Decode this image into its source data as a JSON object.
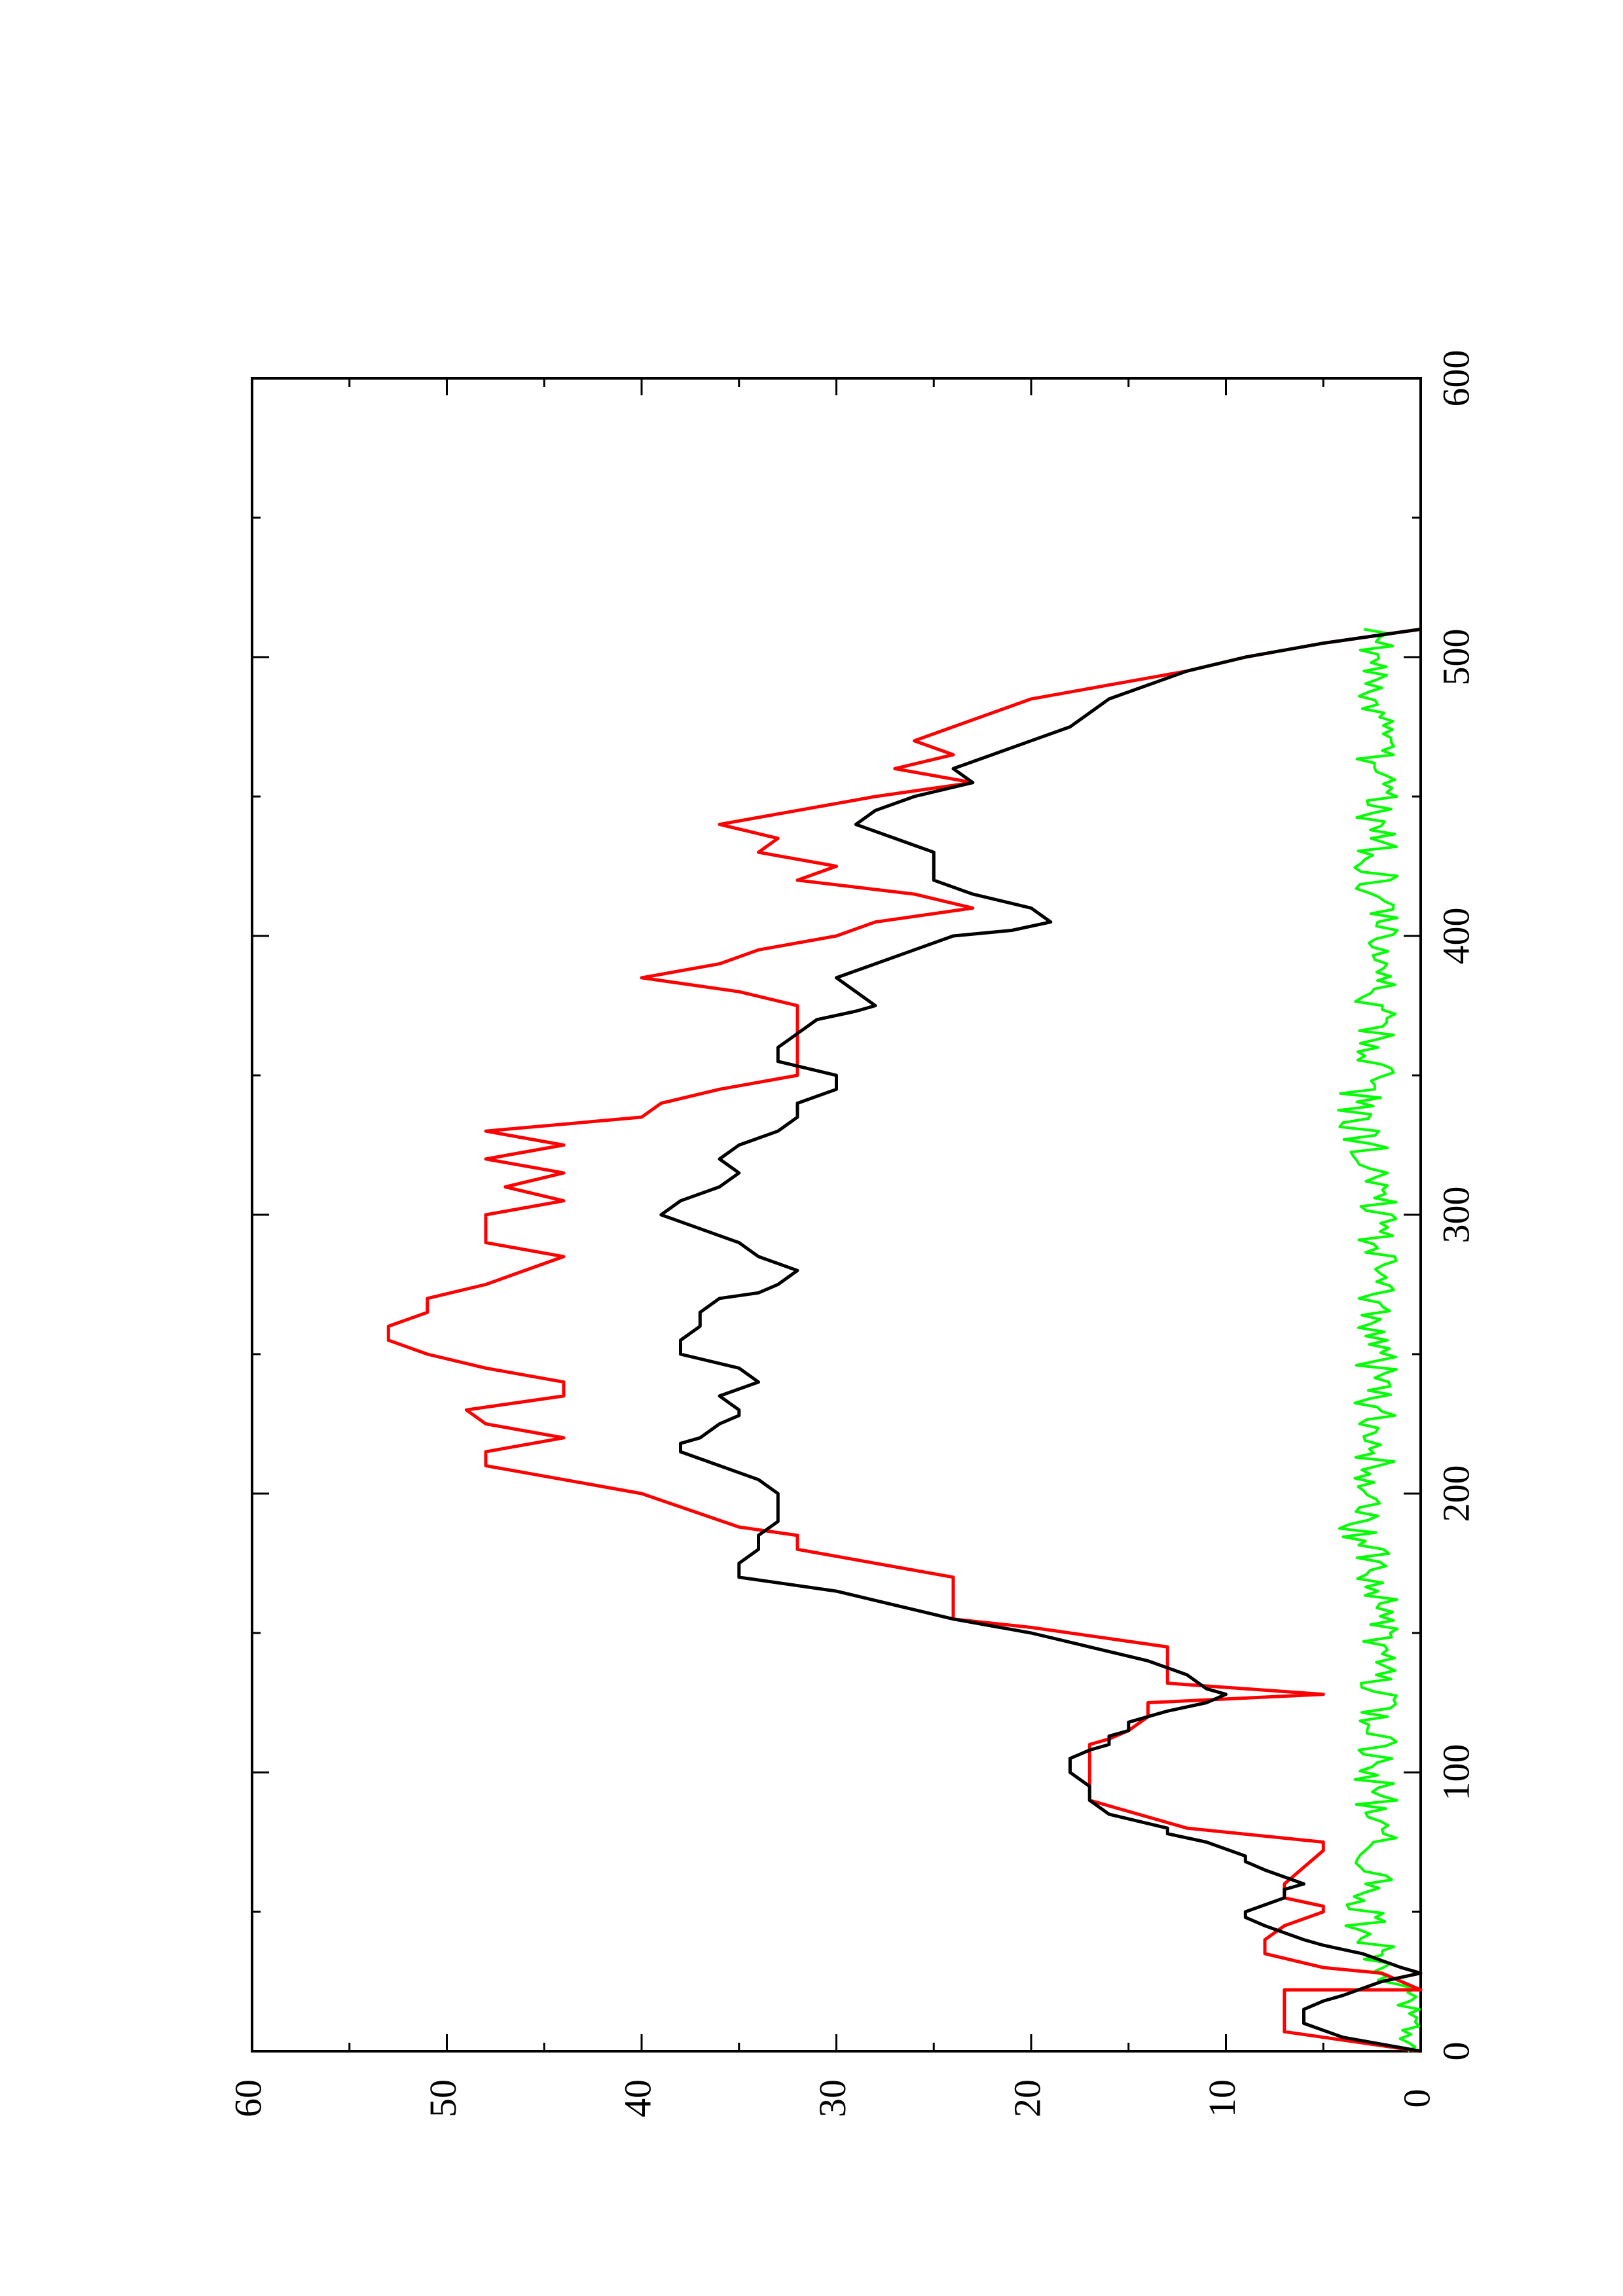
{
  "chart_data": {
    "type": "line",
    "title": "",
    "xlabel": "",
    "ylabel": "",
    "rotated": "90deg counter-clockwise (landscape plot on portrait page)",
    "xlim": [
      0,
      600
    ],
    "ylim": [
      0,
      60
    ],
    "x_ticks": [
      0,
      100,
      200,
      300,
      400,
      500,
      600
    ],
    "y_ticks": [
      0,
      10,
      20,
      30,
      40,
      50,
      60
    ],
    "grid": false,
    "legend": "none",
    "series": [
      {
        "color": "#ff0000",
        "style": "step",
        "x": [
          0,
          7,
          22,
          22,
          28,
          30,
          35,
          40,
          45,
          50,
          52,
          55,
          60,
          72,
          75,
          80,
          90,
          110,
          112,
          115,
          120,
          125,
          128,
          130,
          132,
          145,
          152,
          155,
          170,
          180,
          185,
          188,
          200,
          205,
          210,
          215,
          220,
          225,
          230,
          235,
          240,
          245,
          250,
          255,
          260,
          265,
          270,
          275,
          285,
          290,
          300,
          305,
          310,
          315,
          320,
          325,
          330,
          335,
          340,
          345,
          350,
          355,
          360,
          365,
          370,
          375,
          380,
          385,
          390,
          395,
          400,
          405,
          410,
          415,
          420,
          425,
          430,
          435,
          440,
          445,
          450,
          455,
          460,
          465,
          470,
          475,
          480,
          485,
          490,
          495,
          500,
          505,
          510
        ],
        "y": [
          0,
          7,
          7,
          0,
          2,
          5,
          8,
          8,
          7,
          5,
          5,
          7,
          7,
          5,
          5,
          12,
          17,
          17,
          16,
          15,
          14,
          14,
          5,
          9,
          13,
          13,
          20,
          24,
          24,
          32,
          32,
          35,
          40,
          44,
          48,
          48,
          44,
          48,
          49,
          44,
          44,
          48,
          51,
          53,
          53,
          51,
          51,
          48,
          44,
          48,
          48,
          44,
          47,
          44,
          48,
          44,
          48,
          40,
          39,
          36,
          32,
          32,
          32,
          32,
          32,
          32,
          35,
          40,
          36,
          34,
          30,
          28,
          23,
          26,
          32,
          30,
          34,
          33,
          36,
          32,
          28,
          23,
          27,
          24,
          26,
          24,
          22,
          20,
          16,
          12,
          9,
          5,
          0
        ]
      },
      {
        "color": "#000000",
        "style": "line",
        "x": [
          0,
          5,
          10,
          15,
          18,
          20,
          25,
          28,
          30,
          35,
          38,
          40,
          45,
          48,
          50,
          55,
          58,
          60,
          65,
          68,
          70,
          75,
          78,
          80,
          85,
          90,
          95,
          100,
          105,
          108,
          110,
          113,
          115,
          118,
          120,
          122,
          125,
          128,
          130,
          135,
          140,
          145,
          150,
          155,
          160,
          165,
          168,
          170,
          175,
          180,
          185,
          190,
          195,
          200,
          205,
          210,
          215,
          218,
          220,
          225,
          228,
          230,
          235,
          240,
          245,
          250,
          255,
          260,
          265,
          270,
          272,
          275,
          280,
          285,
          290,
          295,
          300,
          305,
          310,
          315,
          320,
          325,
          330,
          335,
          340,
          345,
          350,
          355,
          360,
          365,
          370,
          373,
          375,
          380,
          385,
          390,
          395,
          400,
          402,
          405,
          410,
          415,
          420,
          425,
          430,
          435,
          440,
          445,
          450,
          455,
          460,
          465,
          470,
          475,
          480,
          485,
          490,
          495,
          500,
          505,
          510
        ],
        "y": [
          0,
          4,
          6,
          6,
          5,
          4,
          2,
          0,
          1,
          3,
          5,
          6,
          8,
          9,
          9,
          7,
          7,
          6,
          8,
          9,
          9,
          11,
          13,
          13,
          16,
          17,
          17,
          18,
          18,
          17,
          16,
          16,
          15,
          15,
          14,
          13,
          11,
          10,
          11,
          12,
          14,
          17,
          20,
          24,
          27,
          30,
          33,
          35,
          35,
          34,
          34,
          33,
          33,
          33,
          34,
          36,
          38,
          38,
          37,
          36,
          35,
          35,
          36,
          34,
          35,
          38,
          38,
          37,
          37,
          36,
          34,
          33,
          32,
          34,
          35,
          37,
          39,
          38,
          36,
          35,
          36,
          35,
          33,
          32,
          32,
          30,
          30,
          33,
          33,
          32,
          31,
          29,
          28,
          29,
          30,
          28,
          26,
          24,
          21,
          19,
          20,
          23,
          25,
          25,
          25,
          27,
          29,
          28,
          26,
          23,
          24,
          22,
          20,
          18,
          17,
          16,
          14,
          12,
          9,
          5,
          0
        ]
      },
      {
        "color": "#00ff00",
        "style": "noisy-line",
        "description": "fluctuating baseline series between about 0 and 4"
      }
    ]
  }
}
